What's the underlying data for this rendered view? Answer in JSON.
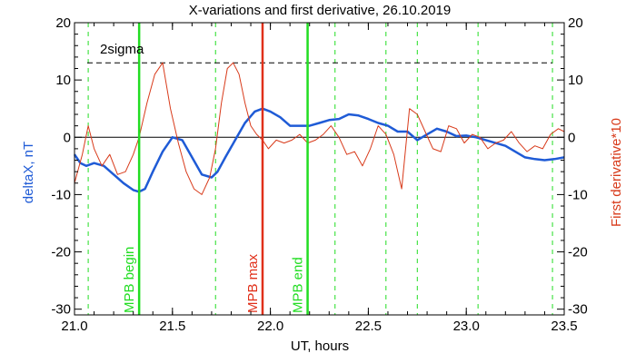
{
  "chart_data": {
    "type": "line",
    "title": "X-variations and first derivative, 26.10.2019",
    "xlabel": "UT, hours",
    "ylabel_left": "deltaX, nT",
    "ylabel_right": "First derivative*10",
    "xlim": [
      21.0,
      23.5
    ],
    "ylim": [
      -31,
      20
    ],
    "xticks": [
      "21.0",
      "21.5",
      "22.0",
      "22.5",
      "23.0",
      "23.5"
    ],
    "xtick_values": [
      21.0,
      21.5,
      22.0,
      22.5,
      23.0,
      23.5
    ],
    "yticks_left": [
      "20",
      "10",
      "0",
      "-10",
      "-20",
      "-30"
    ],
    "yticks_right": [
      "20",
      "10",
      "0",
      "-10",
      "-20",
      "-30"
    ],
    "ytick_values": [
      20,
      10,
      0,
      -10,
      -20,
      -30
    ],
    "colors": {
      "deltaX": "#1f5bd6",
      "derivative": "#d83a1a",
      "markers": "#22dd22",
      "max_marker": "#e0301a",
      "axes": "#000000"
    },
    "threshold": {
      "label": "2sigma",
      "value": 13
    },
    "zero_line": 0,
    "markers": [
      {
        "label": "MPB begin",
        "x": 21.33,
        "color": "#22dd22"
      },
      {
        "label": "MPB max",
        "x": 21.96,
        "color": "#e0301a"
      },
      {
        "label": "MPB end",
        "x": 22.19,
        "color": "#22dd22"
      }
    ],
    "dashed_lines_x": [
      21.07,
      21.72,
      22.33,
      22.59,
      22.75,
      23.06,
      23.44
    ],
    "series": [
      {
        "name": "deltaX",
        "x": [
          21.0,
          21.03,
          21.06,
          21.1,
          21.15,
          21.2,
          21.25,
          21.3,
          21.33,
          21.36,
          21.4,
          21.45,
          21.5,
          21.55,
          21.6,
          21.65,
          21.7,
          21.73,
          21.77,
          21.82,
          21.87,
          21.92,
          21.96,
          22.0,
          22.05,
          22.1,
          22.15,
          22.2,
          22.25,
          22.3,
          22.35,
          22.4,
          22.45,
          22.5,
          22.55,
          22.6,
          22.65,
          22.7,
          22.75,
          22.8,
          22.85,
          22.9,
          22.95,
          23.0,
          23.05,
          23.1,
          23.15,
          23.2,
          23.25,
          23.3,
          23.35,
          23.4,
          23.45,
          23.5
        ],
        "y": [
          -3.0,
          -4.5,
          -5.0,
          -4.5,
          -5.0,
          -6.5,
          -8.0,
          -9.2,
          -9.5,
          -9.0,
          -6.0,
          -2.5,
          0.0,
          -0.5,
          -3.5,
          -6.5,
          -7.0,
          -6.0,
          -3.5,
          -0.5,
          2.5,
          4.5,
          5.0,
          4.5,
          3.5,
          2.0,
          2.0,
          2.0,
          2.5,
          3.0,
          3.2,
          4.0,
          3.8,
          3.2,
          2.5,
          2.0,
          1.0,
          1.0,
          -0.5,
          0.5,
          1.5,
          1.0,
          0.2,
          0.3,
          0.0,
          -0.5,
          -1.0,
          -1.5,
          -2.5,
          -3.5,
          -3.8,
          -4.0,
          -3.8,
          -3.5
        ]
      },
      {
        "name": "derivative",
        "x": [
          21.0,
          21.04,
          21.07,
          21.1,
          21.14,
          21.18,
          21.22,
          21.26,
          21.3,
          21.33,
          21.37,
          21.41,
          21.45,
          21.49,
          21.53,
          21.57,
          21.61,
          21.65,
          21.69,
          21.72,
          21.75,
          21.78,
          21.81,
          21.84,
          21.87,
          21.9,
          21.93,
          21.96,
          21.99,
          22.03,
          22.07,
          22.11,
          22.15,
          22.19,
          22.23,
          22.27,
          22.31,
          22.35,
          22.39,
          22.43,
          22.47,
          22.51,
          22.55,
          22.59,
          22.63,
          22.67,
          22.71,
          22.75,
          22.79,
          22.83,
          22.87,
          22.91,
          22.95,
          22.99,
          23.03,
          23.07,
          23.11,
          23.15,
          23.19,
          23.23,
          23.27,
          23.31,
          23.35,
          23.39,
          23.43,
          23.47,
          23.5
        ],
        "y": [
          -8.0,
          -3.0,
          2.0,
          -2.0,
          -5.0,
          -3.0,
          -6.5,
          -6.0,
          -3.0,
          0.0,
          6.0,
          11.0,
          13.0,
          5.0,
          -1.0,
          -6.0,
          -9.0,
          -10.0,
          -7.0,
          -2.0,
          6.0,
          12.0,
          13.0,
          11.0,
          6.0,
          2.0,
          0.5,
          -0.5,
          -2.0,
          -0.5,
          -1.0,
          -0.5,
          0.5,
          -1.0,
          -0.5,
          0.5,
          2.0,
          0.0,
          -3.0,
          -2.5,
          -5.0,
          -2.0,
          2.0,
          0.5,
          -3.0,
          -9.0,
          5.0,
          4.0,
          1.0,
          -2.0,
          -2.5,
          2.0,
          1.5,
          -1.0,
          0.5,
          0.0,
          -2.0,
          -1.0,
          -0.5,
          1.0,
          -1.0,
          -2.5,
          -1.5,
          -2.0,
          0.5,
          1.5,
          1.0
        ]
      }
    ]
  }
}
